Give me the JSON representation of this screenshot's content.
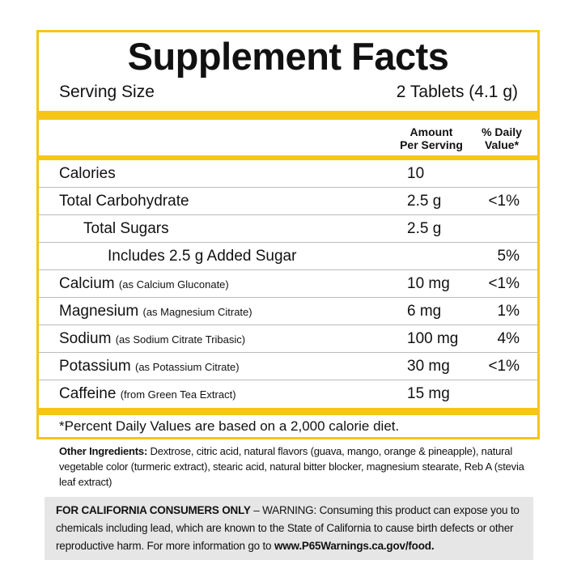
{
  "title": "Supplement Facts",
  "serving_size": {
    "label": "Serving Size",
    "value": "2 Tablets (4.1 g)"
  },
  "columns": {
    "amount": [
      "Amount",
      "Per Serving"
    ],
    "daily_value": [
      "% Daily",
      "Value*"
    ]
  },
  "rows": [
    {
      "name": "Calories",
      "amount": "10"
    },
    {
      "name": "Total Carbohydrate",
      "amount": "2.5 g",
      "daily_value": "<1%"
    },
    {
      "name": "Total Sugars",
      "amount": "2.5 g"
    },
    {
      "name": "Includes 2.5 g Added Sugar",
      "daily_value": "5%"
    },
    {
      "name": "Calcium",
      "source": "(as Calcium Gluconate)",
      "amount": "10 mg",
      "daily_value": "<1%"
    },
    {
      "name": "Magnesium",
      "source": "(as Magnesium Citrate)",
      "amount": "6 mg",
      "daily_value": "1%"
    },
    {
      "name": "Sodium",
      "source": "(as Sodium Citrate Tribasic)",
      "amount": "100 mg",
      "daily_value": "4%"
    },
    {
      "name": "Potassium",
      "source": "(as Potassium Citrate)",
      "amount": "30 mg",
      "daily_value": "<1%"
    },
    {
      "name": "Caffeine",
      "source": "(from Green Tea Extract)",
      "amount": "15 mg"
    }
  ],
  "footnote": "*Percent Daily Values are based on a 2,000 calorie diet.",
  "other_ingredients": {
    "label": "Other Ingredients:",
    "text": "Dextrose, citric acid, natural flavors (guava, mango, orange & pineapple), natural vegetable color (turmeric extract), stearic acid, natural bitter blocker, magnesium stearate, Reb A (stevia leaf extract)"
  },
  "warning": {
    "label": "FOR CALIFORNIA CONSUMERS ONLY",
    "text": "– WARNING: Consuming this product can expose you to chemicals including lead, which are known to the State of California to cause birth defects or other reproductive harm. For more information go to",
    "url": "www.P65Warnings.ca.gov/food."
  }
}
